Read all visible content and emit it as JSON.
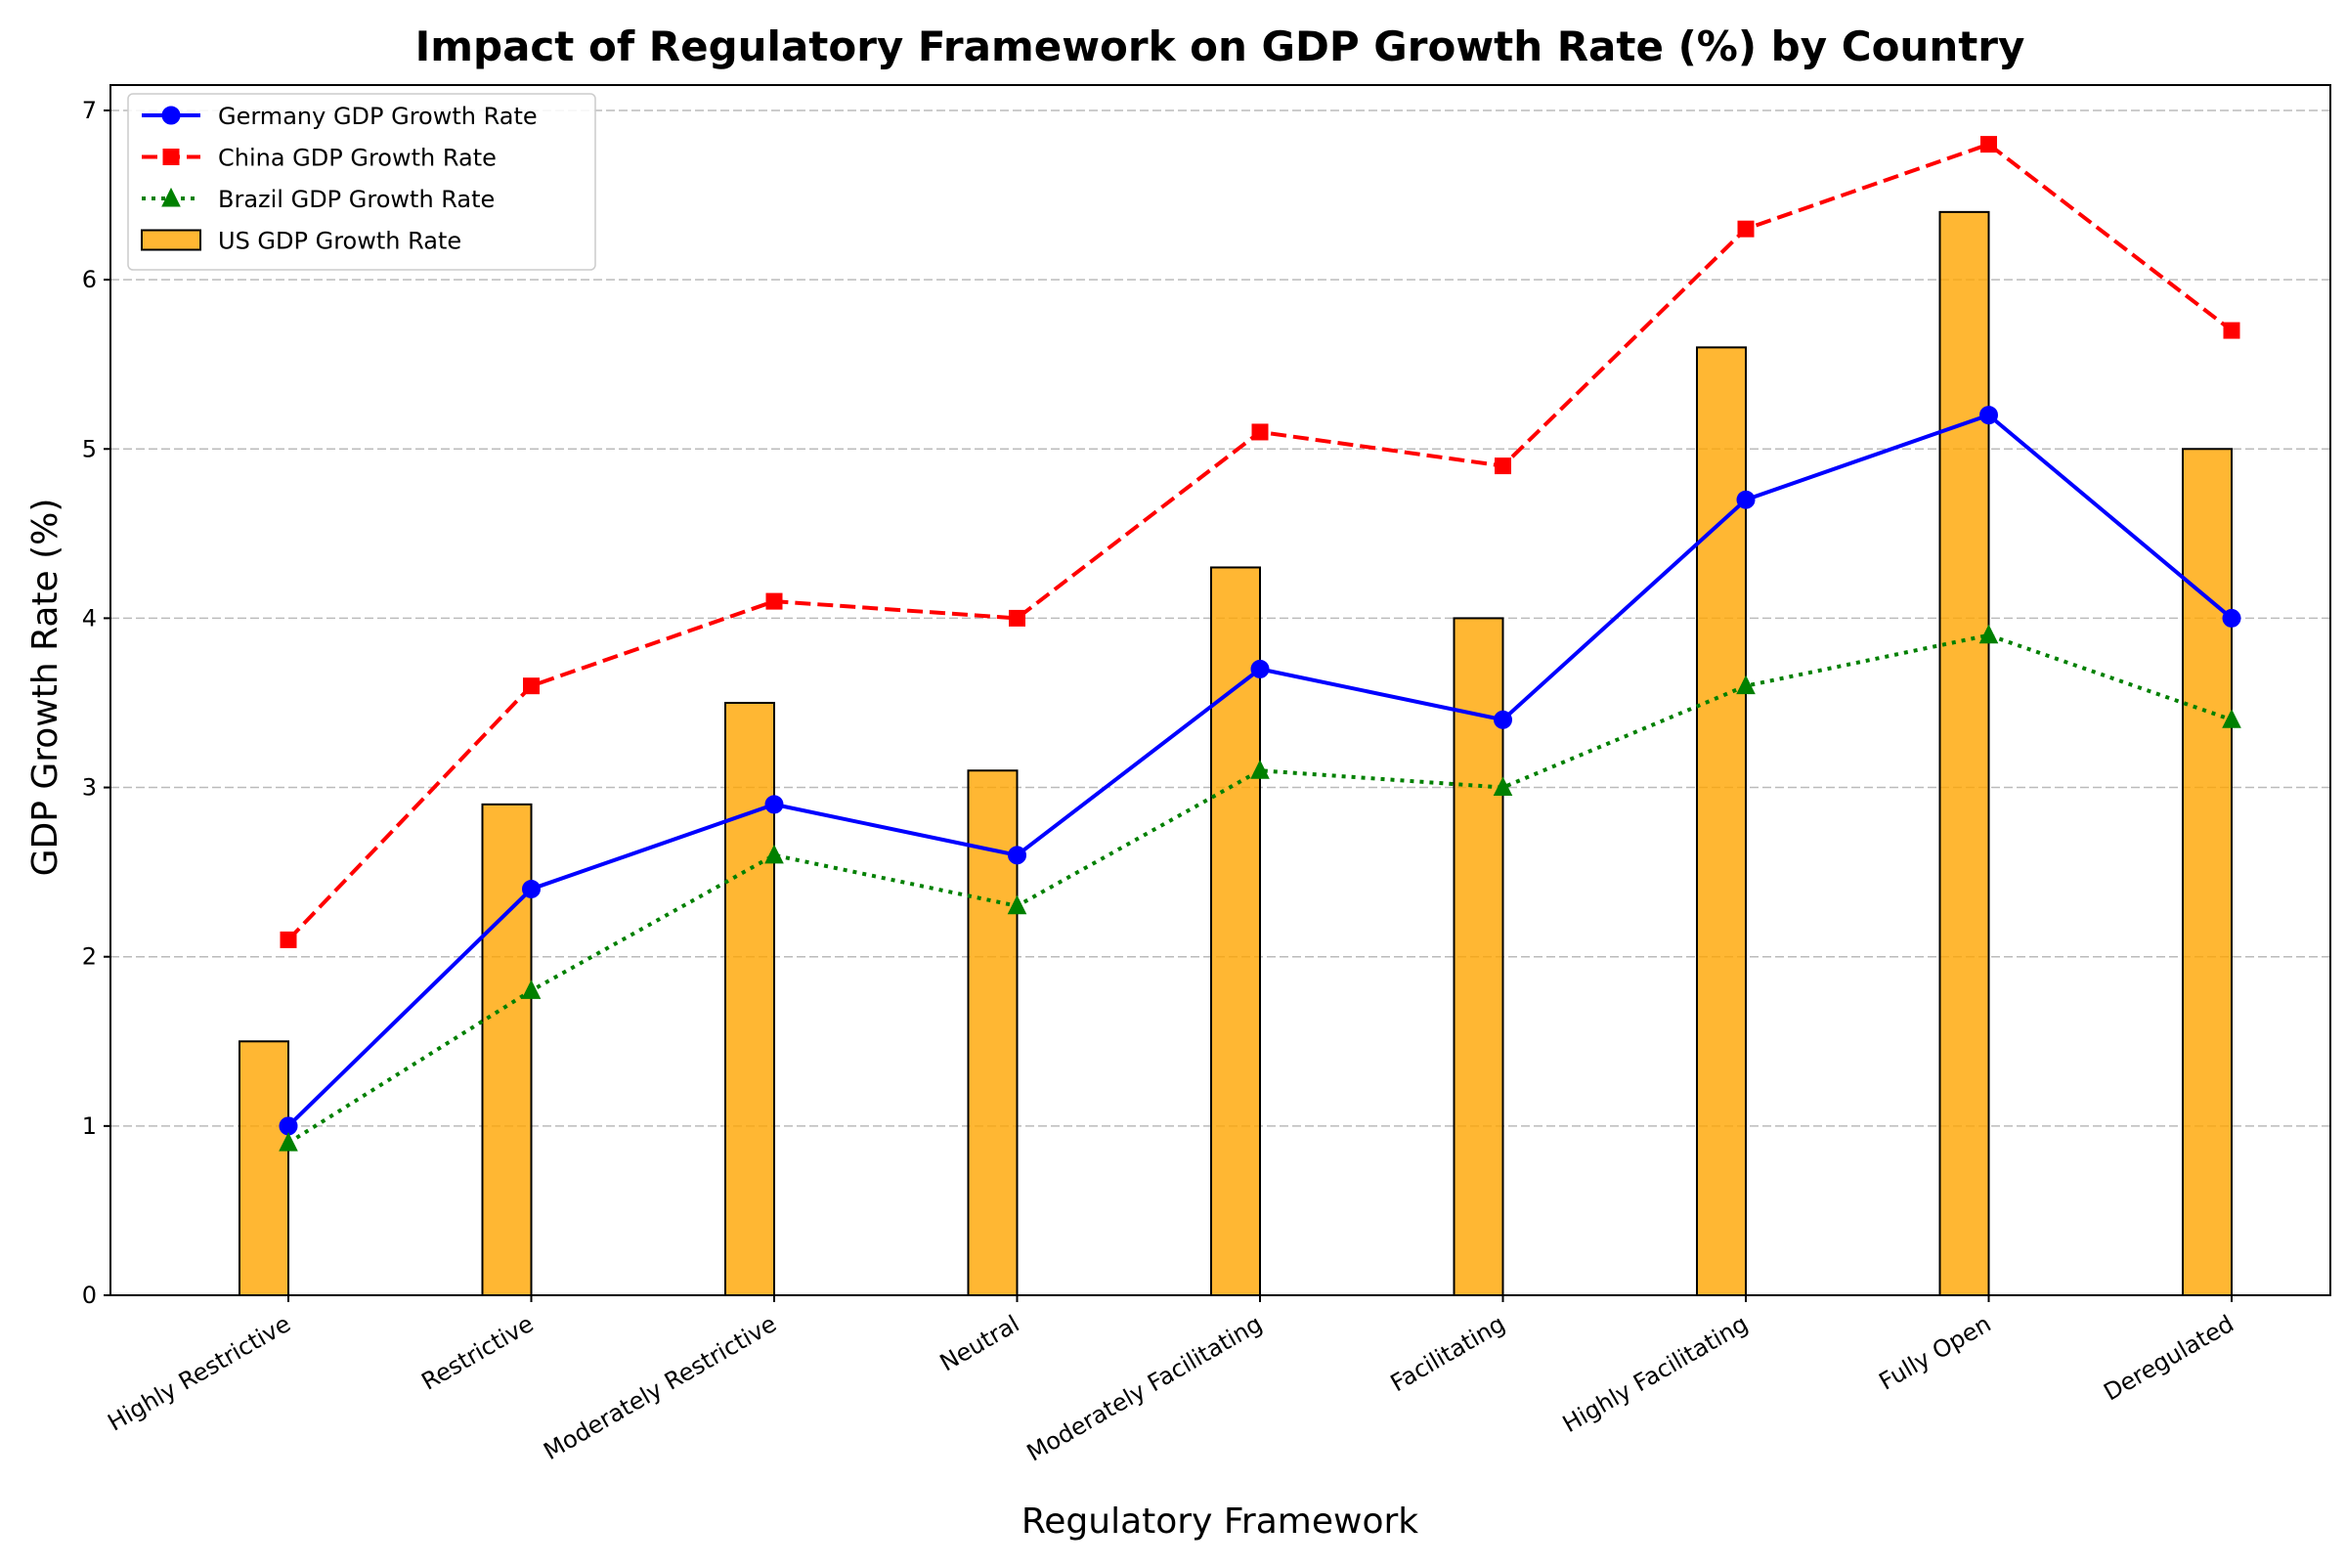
{
  "chart_data": {
    "type": "bar",
    "title": "Impact of Regulatory Framework on GDP Growth Rate (%) by Country",
    "xlabel": "Regulatory Framework",
    "ylabel": "GDP Growth Rate (%)",
    "ylim": [
      0,
      7.15
    ],
    "yticks": [
      0,
      1,
      2,
      3,
      4,
      5,
      6,
      7
    ],
    "grid": "horizontal dashed",
    "legend_position": "upper-left",
    "categories": [
      "Highly Restrictive",
      "Restrictive",
      "Moderately Restrictive",
      "Neutral",
      "Moderately Facilitating",
      "Facilitating",
      "Highly Facilitating",
      "Fully Open",
      "Deregulated"
    ],
    "series": [
      {
        "name": "Germany GDP Growth Rate",
        "type": "line",
        "color": "#0000ff",
        "line_style": "solid",
        "marker": "circle",
        "values": [
          1.0,
          2.4,
          2.9,
          2.6,
          3.7,
          3.4,
          4.7,
          5.2,
          4.0
        ]
      },
      {
        "name": "China GDP Growth Rate",
        "type": "line",
        "color": "#ff0000",
        "line_style": "dashed",
        "marker": "square",
        "values": [
          2.1,
          3.6,
          4.1,
          4.0,
          5.1,
          4.9,
          6.3,
          6.8,
          5.7
        ]
      },
      {
        "name": "Brazil GDP Growth Rate",
        "type": "line",
        "color": "#008000",
        "line_style": "dotted",
        "marker": "triangle",
        "values": [
          0.9,
          1.8,
          2.6,
          2.3,
          3.1,
          3.0,
          3.6,
          3.9,
          3.4
        ]
      },
      {
        "name": "US GDP Growth Rate",
        "type": "bar",
        "color": "#ffa500",
        "edge_color": "#000000",
        "values": [
          1.5,
          2.9,
          3.5,
          3.1,
          4.3,
          4.0,
          5.6,
          6.4,
          5.0
        ]
      }
    ]
  }
}
